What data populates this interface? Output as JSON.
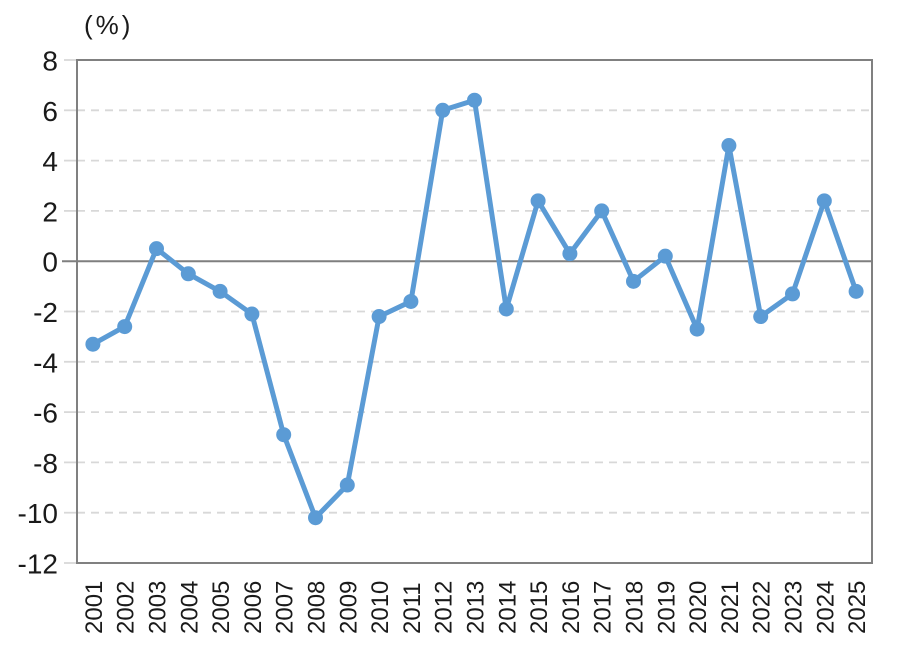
{
  "chart_data": {
    "type": "line",
    "title": "",
    "unit_label": "(%)",
    "xlabel": "",
    "ylabel": "(%)",
    "categories": [
      "2001",
      "2002",
      "2003",
      "2004",
      "2005",
      "2006",
      "2007",
      "2008",
      "2009",
      "2010",
      "2011",
      "2012",
      "2013",
      "2014",
      "2015",
      "2016",
      "2017",
      "2018",
      "2019",
      "2020",
      "2021",
      "2022",
      "2023",
      "2024",
      "2025"
    ],
    "values": [
      -3.3,
      -2.6,
      0.5,
      -0.5,
      -1.2,
      -2.1,
      -6.9,
      -10.2,
      -8.9,
      -2.2,
      -1.6,
      6.0,
      6.4,
      -1.9,
      2.4,
      0.3,
      2.0,
      -0.8,
      0.2,
      -2.7,
      4.6,
      -2.2,
      -1.3,
      2.4,
      -1.2
    ],
    "ylim": [
      -12,
      8
    ],
    "ytick_step": 2,
    "yticks": [
      8,
      6,
      4,
      2,
      0,
      -2,
      -4,
      -6,
      -8,
      -10,
      -12
    ],
    "grid": "horizontal-dashed",
    "zero_line": true,
    "legend_position": "none",
    "x_label_rotation": -90,
    "marker": "circle",
    "colors": {
      "line": "#5B9BD5",
      "marker": "#5B9BD5",
      "zero_line": "#7F7F7F",
      "plot_border": "#808080",
      "gridline": "#D8D8D8",
      "text": "#1A1A1A",
      "background": "#FFFFFF"
    }
  }
}
